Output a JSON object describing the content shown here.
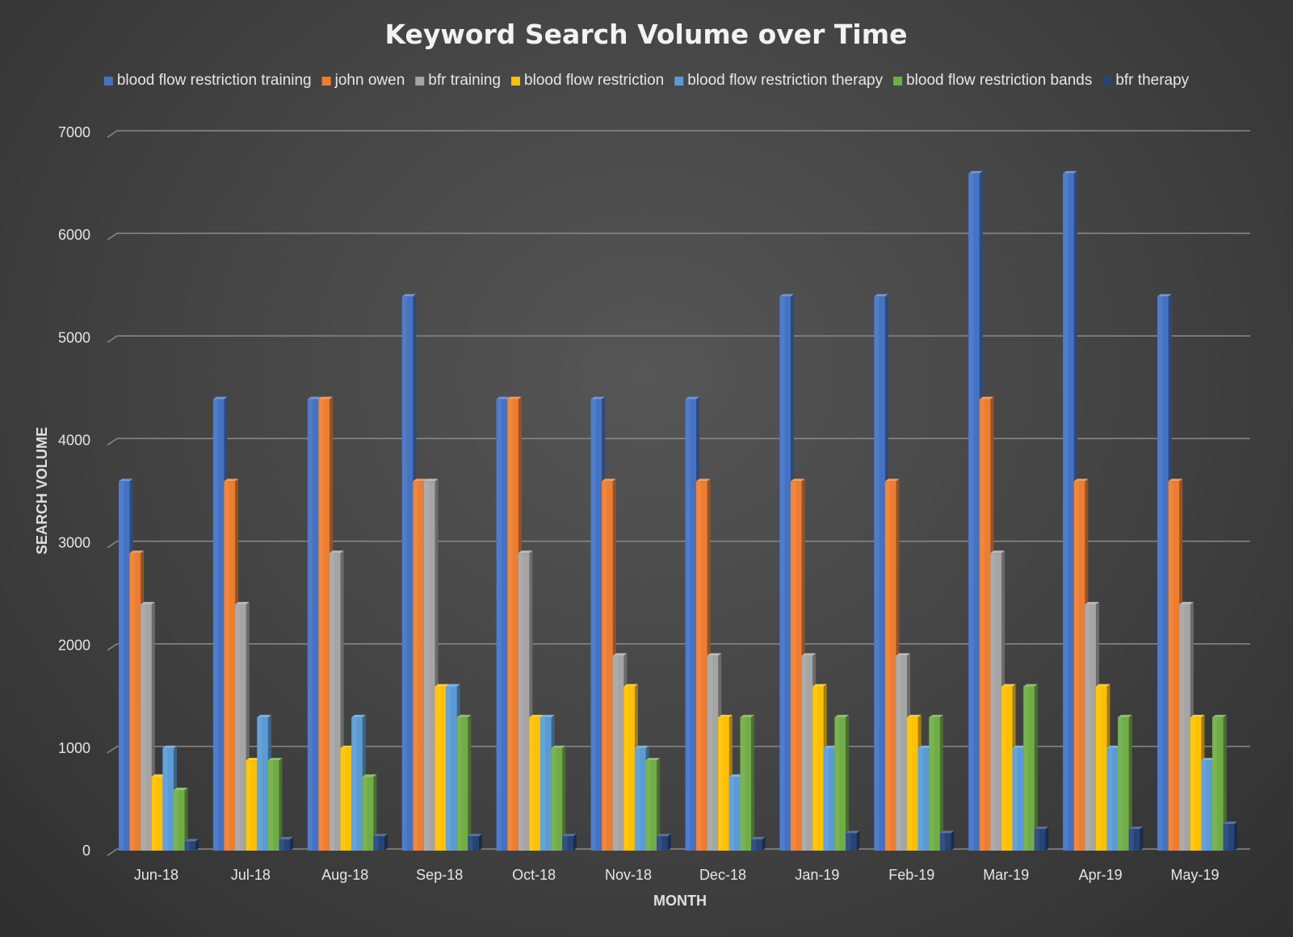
{
  "chart_data": {
    "type": "bar",
    "title": "Keyword Search Volume over Time",
    "xlabel": "MONTH",
    "ylabel": "SEARCH VOLUME",
    "ylim": [
      0,
      7000
    ],
    "yticks": [
      0,
      1000,
      2000,
      3000,
      4000,
      5000,
      6000,
      7000
    ],
    "grid": true,
    "legend_position": "top",
    "categories": [
      "Jun-18",
      "Jul-18",
      "Aug-18",
      "Sep-18",
      "Oct-18",
      "Nov-18",
      "Dec-18",
      "Jan-19",
      "Feb-19",
      "Mar-19",
      "Apr-19",
      "May-19"
    ],
    "series": [
      {
        "name": "blood flow restriction training",
        "color": "#4472c4",
        "values": [
          3600,
          4400,
          4400,
          5400,
          4400,
          4400,
          4400,
          5400,
          5400,
          6600,
          6600,
          5400
        ]
      },
      {
        "name": "john owen",
        "color": "#ed7d31",
        "values": [
          2900,
          3600,
          4400,
          3600,
          4400,
          3600,
          3600,
          3600,
          3600,
          4400,
          3600,
          3600
        ]
      },
      {
        "name": "bfr training",
        "color": "#a5a5a5",
        "values": [
          2400,
          2400,
          2900,
          3600,
          2900,
          1900,
          1900,
          1900,
          1900,
          2900,
          2400,
          2400
        ]
      },
      {
        "name": "blood flow restriction",
        "color": "#ffc000",
        "values": [
          720,
          880,
          1000,
          1600,
          1300,
          1600,
          1300,
          1600,
          1300,
          1600,
          1600,
          1300
        ]
      },
      {
        "name": "blood flow restriction therapy",
        "color": "#5b9bd5",
        "values": [
          1000,
          1300,
          1300,
          1600,
          1300,
          1000,
          720,
          1000,
          1000,
          1000,
          1000,
          880
        ]
      },
      {
        "name": "blood flow restriction bands",
        "color": "#70ad47",
        "values": [
          590,
          880,
          720,
          1300,
          1000,
          880,
          1300,
          1300,
          1300,
          1600,
          1300,
          1300
        ]
      },
      {
        "name": "bfr therapy",
        "color": "#264478",
        "values": [
          90,
          110,
          140,
          140,
          140,
          140,
          110,
          170,
          170,
          210,
          210,
          260
        ]
      }
    ]
  }
}
